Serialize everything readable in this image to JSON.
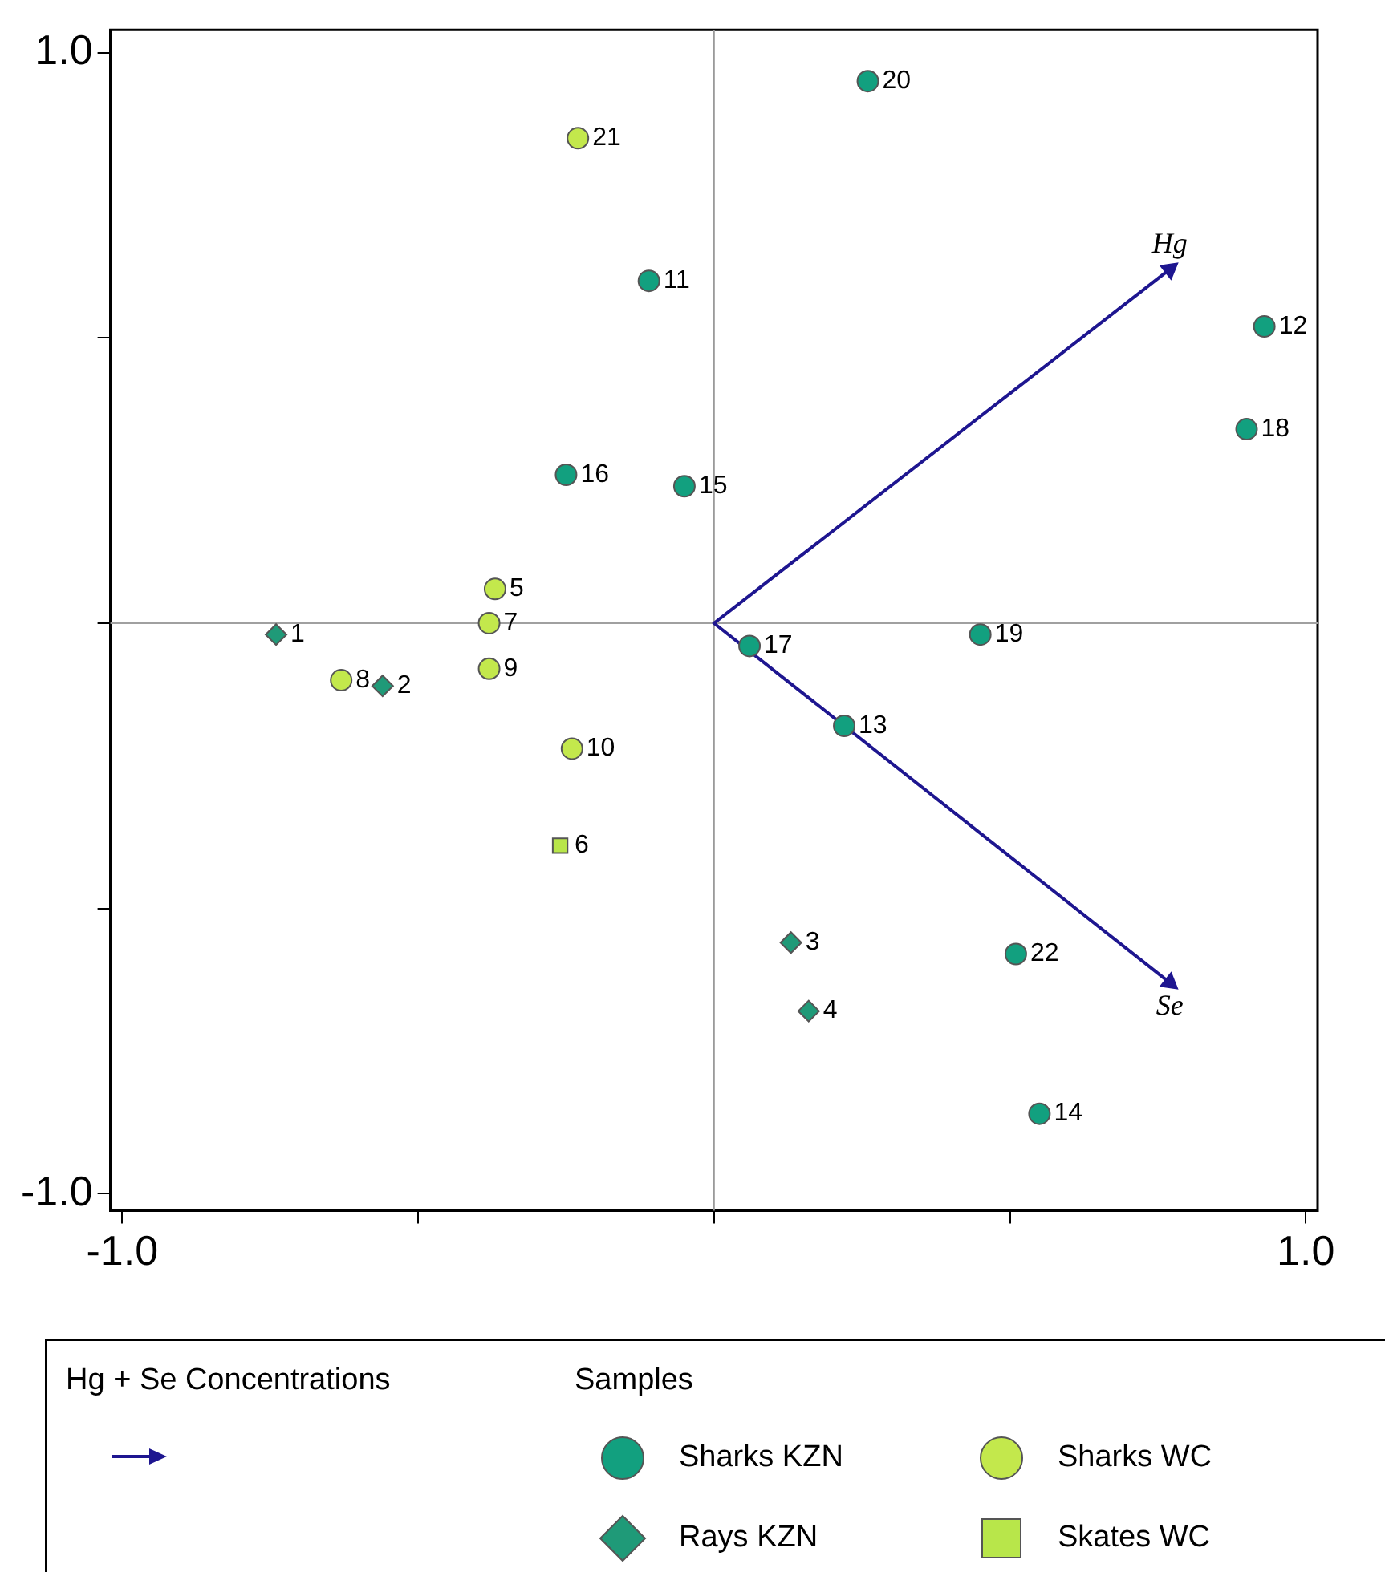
{
  "chart_data": {
    "type": "scatter",
    "legend_title": "Samples",
    "legend": "bottom",
    "grid": false,
    "xlim": [
      -1.02,
      1.02
    ],
    "ylim": [
      -1.03,
      1.04
    ],
    "xticks": [
      {
        "value": -1,
        "label": "-1.0"
      },
      {
        "value": -0.5,
        "label": null
      },
      {
        "value": 0,
        "label": null
      },
      {
        "value": 0.5,
        "label": null
      },
      {
        "value": 1,
        "label": "1.0"
      }
    ],
    "yticks": [
      {
        "value": -1,
        "label": "-1.0"
      },
      {
        "value": -0.5,
        "label": null
      },
      {
        "value": 0,
        "label": null
      },
      {
        "value": 0.5,
        "label": null
      },
      {
        "value": 1,
        "label": "1.0"
      }
    ],
    "ref_lines": [
      {
        "axis": "x",
        "value": 0,
        "color": "#9a9a9a"
      },
      {
        "axis": "y",
        "value": 0,
        "color": "#a0a0a0"
      }
    ],
    "series": [
      {
        "name": "Sharks KZN",
        "color": "#12a07f",
        "marker": "circle",
        "x": [
          0.26,
          -0.11,
          0.93,
          0.9,
          -0.25,
          -0.05,
          0.06,
          0.45,
          0.22,
          0.51,
          0.55
        ],
        "values": [
          0.95,
          0.6,
          0.52,
          0.34,
          0.26,
          0.24,
          -0.04,
          -0.02,
          -0.18,
          -0.58,
          -0.86
        ]
      },
      {
        "name": "Sharks WC",
        "color": "#c3e84c",
        "marker": "circle",
        "x": [
          -0.23,
          -0.37,
          -0.38,
          -0.38,
          -0.63,
          -0.24
        ],
        "values": [
          0.85,
          0.06,
          0,
          -0.08,
          -0.1,
          -0.22
        ]
      },
      {
        "name": "Rays KZN",
        "color": "#1f9a78",
        "marker": "diamond",
        "x": [
          -0.74,
          -0.56,
          0.13,
          0.16
        ],
        "values": [
          -0.02,
          -0.11,
          -0.56,
          -0.68
        ]
      },
      {
        "name": "Skates WC",
        "color": "#b8e64a",
        "marker": "square",
        "x": [
          -0.26
        ],
        "values": [
          -0.39
        ]
      },
      {
        "name": "Hg",
        "type": "line",
        "color": "#1e1690",
        "x": [
          0,
          0.77
        ],
        "values": [
          0,
          0.62
        ]
      },
      {
        "name": "Se",
        "type": "line",
        "color": "#1e1690",
        "x": [
          0,
          0.77
        ],
        "values": [
          0,
          -0.63
        ]
      }
    ],
    "annotations": [
      "Hg + Se Concentrations",
      {
        "text": "20",
        "x": 0.26,
        "y": 0.95
      },
      {
        "text": "11",
        "x": -0.11,
        "y": 0.6
      },
      {
        "text": "12",
        "x": 0.93,
        "y": 0.52
      },
      {
        "text": "18",
        "x": 0.9,
        "y": 0.34
      },
      {
        "text": "16",
        "x": -0.25,
        "y": 0.26
      },
      {
        "text": "15",
        "x": -0.05,
        "y": 0.24
      },
      {
        "text": "17",
        "x": 0.06,
        "y": -0.04
      },
      {
        "text": "19",
        "x": 0.45,
        "y": -0.02
      },
      {
        "text": "13",
        "x": 0.22,
        "y": -0.18
      },
      {
        "text": "22",
        "x": 0.51,
        "y": -0.58
      },
      {
        "text": "14",
        "x": 0.55,
        "y": -0.86
      },
      {
        "text": "21",
        "x": -0.23,
        "y": 0.85
      },
      {
        "text": "5",
        "x": -0.37,
        "y": 0.06
      },
      {
        "text": "7",
        "x": -0.38,
        "y": 0
      },
      {
        "text": "9",
        "x": -0.38,
        "y": -0.08
      },
      {
        "text": "8",
        "x": -0.63,
        "y": -0.1
      },
      {
        "text": "10",
        "x": -0.24,
        "y": -0.22
      },
      {
        "text": "1",
        "x": -0.74,
        "y": -0.02
      },
      {
        "text": "2",
        "x": -0.56,
        "y": -0.11
      },
      {
        "text": "3",
        "x": 0.13,
        "y": -0.56
      },
      {
        "text": "4",
        "x": 0.16,
        "y": -0.68
      },
      {
        "text": "6",
        "x": -0.26,
        "y": -0.39
      }
    ]
  }
}
